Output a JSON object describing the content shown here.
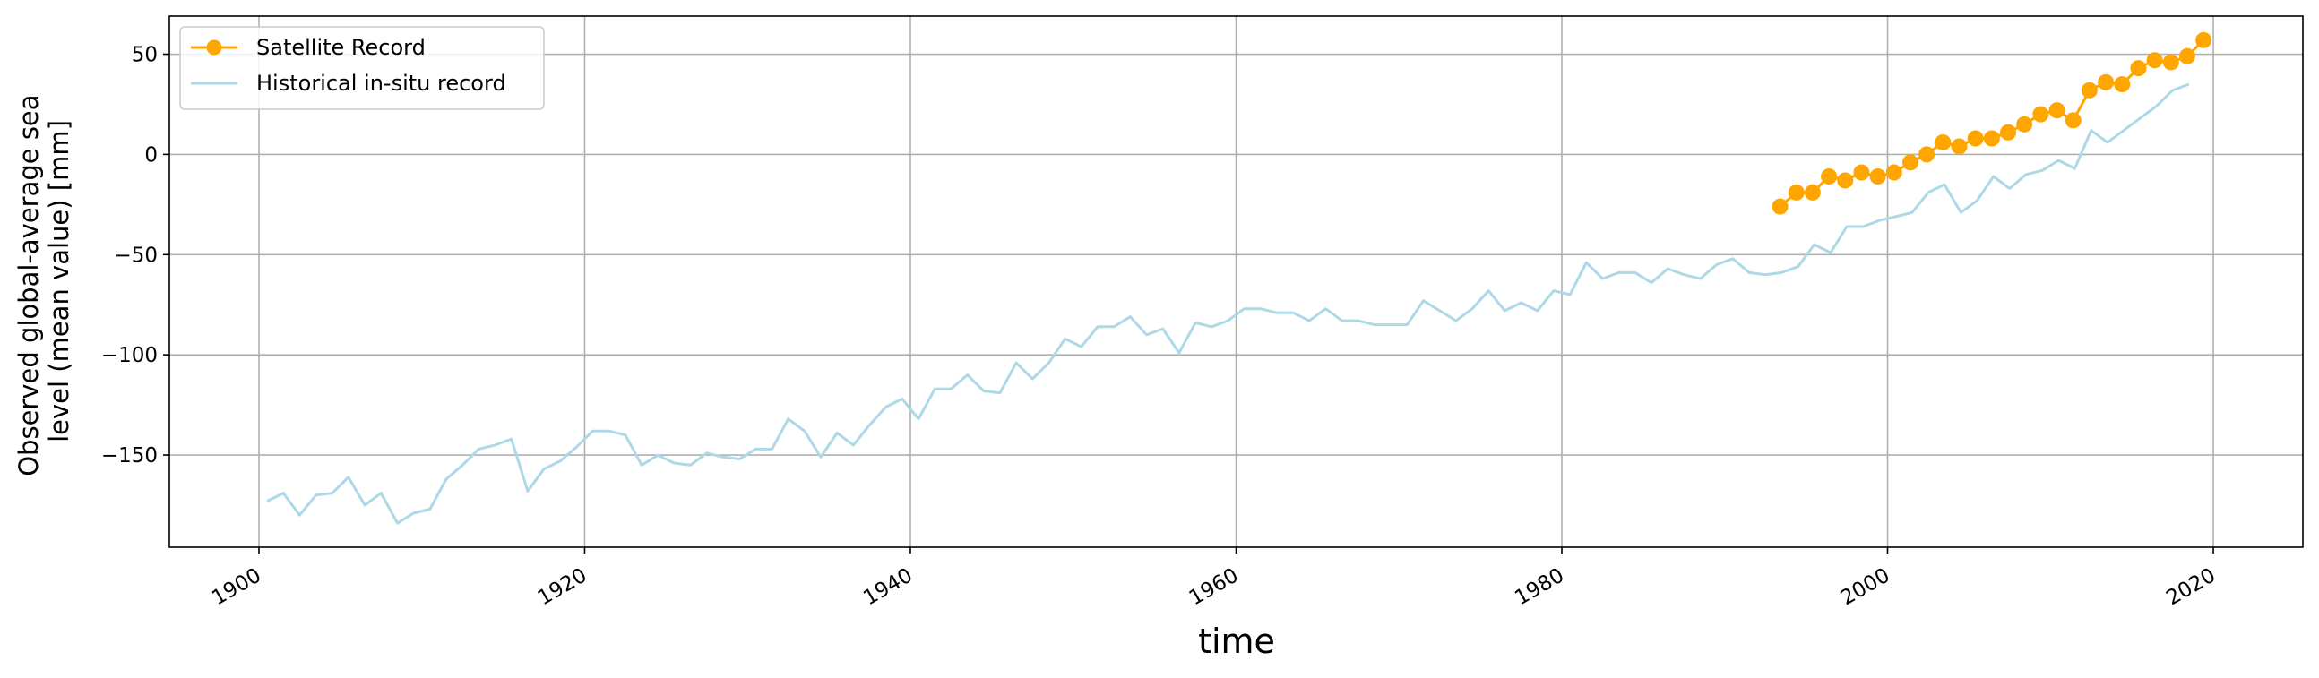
{
  "chart_data": {
    "type": "line",
    "xlabel": "time",
    "ylabel_lines": [
      "Observed global-average sea",
      "level (mean value) [mm]"
    ],
    "xlim": [
      1894.5,
      2025.5
    ],
    "ylim": [
      -196,
      69
    ],
    "x_ticks": [
      1900,
      1920,
      1940,
      1960,
      1980,
      2000,
      2020
    ],
    "y_ticks": [
      50,
      0,
      -50,
      -100,
      -150
    ],
    "y_tick_labels": [
      "50",
      "0",
      "−50",
      "−100",
      "−150"
    ],
    "grid": true,
    "legend_position": "top-left",
    "series": [
      {
        "name": "Satellite Record",
        "color": "#ffa500",
        "marker": "circle",
        "x": [
          1993.4,
          1994.4,
          1995.4,
          1996.4,
          1997.4,
          1998.4,
          1999.4,
          2000.4,
          2001.4,
          2002.4,
          2003.4,
          2004.4,
          2005.4,
          2006.4,
          2007.4,
          2008.4,
          2009.4,
          2010.4,
          2011.4,
          2012.4,
          2013.4,
          2014.4,
          2015.4,
          2016.4,
          2017.4,
          2018.4,
          2019.4
        ],
        "y": [
          -26,
          -19,
          -19,
          -11,
          -13,
          -9,
          -11,
          -9,
          -4,
          0,
          6,
          4,
          8,
          8,
          11,
          15,
          20,
          22,
          17,
          32,
          36,
          35,
          43,
          47,
          46,
          49,
          57
        ]
      },
      {
        "name": "Historical in-situ record",
        "color": "#add8e6",
        "marker": "none",
        "x": [
          1900.5,
          1901.5,
          1902.5,
          1903.5,
          1904.5,
          1905.5,
          1906.5,
          1907.5,
          1908.5,
          1909.5,
          1910.5,
          1911.5,
          1912.5,
          1913.5,
          1914.5,
          1915.5,
          1916.5,
          1917.5,
          1918.5,
          1919.5,
          1920.5,
          1921.5,
          1922.5,
          1923.5,
          1924.5,
          1925.5,
          1926.5,
          1927.5,
          1928.5,
          1929.5,
          1930.5,
          1931.5,
          1932.5,
          1933.5,
          1934.5,
          1935.5,
          1936.5,
          1937.5,
          1938.5,
          1939.5,
          1940.5,
          1941.5,
          1942.5,
          1943.5,
          1944.5,
          1945.5,
          1946.5,
          1947.5,
          1948.5,
          1949.5,
          1950.5,
          1951.5,
          1952.5,
          1953.5,
          1954.5,
          1955.5,
          1956.5,
          1957.5,
          1958.5,
          1959.5,
          1960.5,
          1961.5,
          1962.5,
          1963.5,
          1964.5,
          1965.5,
          1966.5,
          1967.5,
          1968.5,
          1969.5,
          1970.5,
          1971.5,
          1972.5,
          1973.5,
          1974.5,
          1975.5,
          1976.5,
          1977.5,
          1978.5,
          1979.5,
          1980.5,
          1981.5,
          1982.5,
          1983.5,
          1984.5,
          1985.5,
          1986.5,
          1987.5,
          1988.5,
          1989.5,
          1990.5,
          1991.5,
          1992.5,
          1993.5,
          1994.5,
          1995.5,
          1996.5,
          1997.5,
          1998.5,
          1999.5,
          2000.5,
          2001.5,
          2002.5,
          2003.5,
          2004.5,
          2005.5,
          2006.5,
          2007.5,
          2008.5,
          2009.5,
          2010.5,
          2011.5,
          2012.5,
          2013.5,
          2014.5,
          2015.5,
          2016.5,
          2017.5,
          2018.5
        ],
        "y": [
          -173,
          -169,
          -180,
          -170,
          -169,
          -161,
          -175,
          -169,
          -184,
          -179,
          -177,
          -162,
          -155,
          -147,
          -145,
          -142,
          -168,
          -157,
          -153,
          -146,
          -138,
          -138,
          -140,
          -155,
          -150,
          -154,
          -155,
          -149,
          -151,
          -152,
          -147,
          -147,
          -132,
          -138,
          -151,
          -139,
          -145,
          -135,
          -126,
          -122,
          -132,
          -117,
          -117,
          -110,
          -118,
          -119,
          -104,
          -112,
          -104,
          -92,
          -96,
          -86,
          -86,
          -81,
          -90,
          -87,
          -99,
          -84,
          -86,
          -83,
          -77,
          -77,
          -79,
          -79,
          -83,
          -77,
          -83,
          -83,
          -85,
          -85,
          -85,
          -73,
          -78,
          -83,
          -77,
          -68,
          -78,
          -74,
          -78,
          -68,
          -70,
          -54,
          -62,
          -59,
          -59,
          -64,
          -57,
          -60,
          -62,
          -55,
          -52,
          -59,
          -60,
          -59,
          -56,
          -45,
          -49,
          -36,
          -36,
          -33,
          -31,
          -29,
          -19,
          -15,
          -29,
          -23,
          -11,
          -17,
          -10,
          -8,
          -3,
          -7,
          12,
          6,
          12,
          18,
          24,
          32,
          35
        ]
      }
    ]
  }
}
